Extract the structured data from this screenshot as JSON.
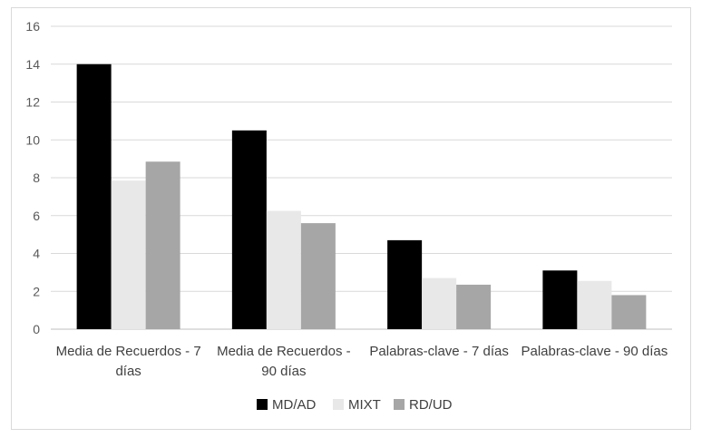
{
  "chart_data": {
    "type": "bar",
    "categories": [
      [
        "Media de Recuerdos - 7",
        "días"
      ],
      [
        "Media de Recuerdos -",
        "90 días"
      ],
      [
        "Palabras-clave - 7 días"
      ],
      [
        "Palabras-clave - 90 días"
      ]
    ],
    "series": [
      {
        "name": "MD/AD",
        "color": "#000000",
        "values": [
          14.0,
          10.5,
          4.7,
          3.1
        ]
      },
      {
        "name": "MIXT",
        "color": "#e8e8e8",
        "values": [
          7.85,
          6.25,
          2.7,
          2.55
        ]
      },
      {
        "name": "RD/UD",
        "color": "#a6a6a6",
        "values": [
          8.85,
          5.6,
          2.35,
          1.8
        ]
      }
    ],
    "ylim": [
      0,
      16
    ],
    "yticks": [
      0,
      2,
      4,
      6,
      8,
      10,
      12,
      14,
      16
    ],
    "grid": true,
    "legend_position": "bottom"
  }
}
